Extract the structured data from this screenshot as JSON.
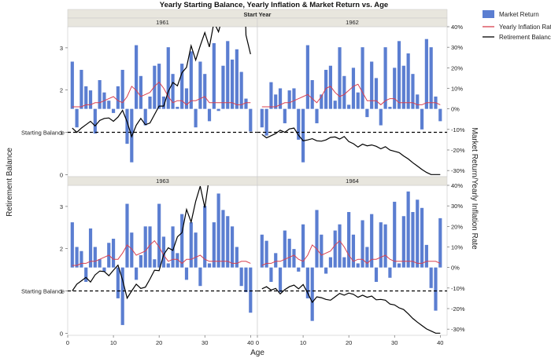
{
  "chart_data": {
    "type": "bar+line",
    "title": "Yearly Starting Balance, Yearly Inflation & Market Return vs. Age",
    "facet_header": "Start Year",
    "xlabel": "Age",
    "ylabel_left": "Retirement Balance",
    "ylabel_right": "Market Return/Yearly Inflation Rate",
    "starting_balance_label": "Starting Balance",
    "starting_balance_value": 1.0,
    "x_ticks": [
      0,
      10,
      20,
      30,
      40
    ],
    "y_left_ticks": [
      0,
      1,
      2,
      3
    ],
    "y_left_range": [
      -0.05,
      3.5
    ],
    "y_right_ticks": [
      "-30%",
      "-20%",
      "-10%",
      "0%",
      "10%",
      "20%",
      "30%",
      "40%"
    ],
    "y_right_range": [
      -0.33,
      0.4
    ],
    "legend": {
      "market_return": "Market Return",
      "inflation": "Yearly Inflation Rate",
      "balance": "Retirement Balance"
    },
    "colors": {
      "market_return": "#5b7ed1",
      "inflation": "#d9404f",
      "balance": "#000000",
      "header_bg": "#e8e6de",
      "panel_border": "#c8c8c8"
    },
    "panels": [
      {
        "start_year": "1961",
        "ages": [
          1,
          2,
          3,
          4,
          5,
          6,
          7,
          8,
          9,
          10,
          11,
          12,
          13,
          14,
          15,
          16,
          17,
          18,
          19,
          20,
          21,
          22,
          23,
          24,
          25,
          26,
          27,
          28,
          29,
          30,
          31,
          32,
          33,
          34,
          35,
          36,
          37,
          38,
          39,
          40
        ],
        "market_return": [
          0.23,
          -0.09,
          0.19,
          0.11,
          0.09,
          -0.12,
          0.14,
          0.08,
          0.04,
          -0.02,
          0.11,
          0.19,
          -0.17,
          -0.26,
          0.31,
          0.16,
          -0.08,
          0.06,
          0.21,
          0.22,
          0.06,
          0.3,
          0.17,
          0.01,
          0.22,
          0.1,
          0.28,
          -0.09,
          0.23,
          0.17,
          -0.06,
          0.32,
          -0.01,
          0.21,
          0.33,
          0.24,
          0.29,
          0.18,
          0.05,
          -0.11
        ],
        "inflation": [
          0.01,
          0.01,
          0.01,
          0.02,
          0.02,
          0.03,
          0.03,
          0.04,
          0.05,
          0.06,
          0.04,
          0.03,
          0.06,
          0.11,
          0.09,
          0.06,
          0.07,
          0.08,
          0.11,
          0.13,
          0.1,
          0.06,
          0.03,
          0.04,
          0.04,
          0.02,
          0.04,
          0.04,
          0.05,
          0.06,
          0.03,
          0.03,
          0.03,
          0.03,
          0.03,
          0.03,
          0.02,
          0.02,
          0.03,
          0.03
        ],
        "balance": [
          1.1,
          1.0,
          1.1,
          1.18,
          1.26,
          1.15,
          1.28,
          1.33,
          1.34,
          1.26,
          1.36,
          1.52,
          1.25,
          0.9,
          1.17,
          1.33,
          1.18,
          1.22,
          1.42,
          1.62,
          1.62,
          1.97,
          2.18,
          2.1,
          2.41,
          2.54,
          3.05,
          2.71,
          3.05,
          3.36,
          3.02,
          3.6,
          3.38,
          3.78,
          4.5,
          5.25,
          6.2,
          6.8,
          3.3,
          2.85
        ]
      },
      {
        "start_year": "1962",
        "ages": [
          1,
          2,
          3,
          4,
          5,
          6,
          7,
          8,
          9,
          10,
          11,
          12,
          13,
          14,
          15,
          16,
          17,
          18,
          19,
          20,
          21,
          22,
          23,
          24,
          25,
          26,
          27,
          28,
          29,
          30,
          31,
          32,
          33,
          34,
          35,
          36,
          37,
          38,
          39,
          40
        ],
        "market_return": [
          -0.09,
          -0.13,
          0.13,
          0.07,
          0.1,
          -0.07,
          0.09,
          0.1,
          -0.15,
          -0.26,
          0.31,
          0.14,
          -0.07,
          0.07,
          0.19,
          0.21,
          0.04,
          0.3,
          0.16,
          0.02,
          0.2,
          0.08,
          0.3,
          -0.04,
          0.23,
          0.15,
          -0.08,
          0.3,
          0.01,
          0.2,
          0.33,
          0.21,
          0.27,
          0.17,
          0.07,
          -0.1,
          0.34,
          0.3,
          0.06,
          -0.06
        ],
        "inflation": [
          0.01,
          0.01,
          0.01,
          0.01,
          0.02,
          0.03,
          0.03,
          0.04,
          0.05,
          0.06,
          0.07,
          0.05,
          0.03,
          0.06,
          0.1,
          0.11,
          0.08,
          0.06,
          0.07,
          0.09,
          0.11,
          0.12,
          0.08,
          0.04,
          0.04,
          0.04,
          0.02,
          0.04,
          0.05,
          0.05,
          0.03,
          0.03,
          0.03,
          0.03,
          0.02,
          0.02,
          0.03,
          0.03,
          0.03,
          0.02
        ],
        "balance": [
          0.95,
          0.87,
          0.92,
          0.97,
          1.05,
          1.0,
          1.08,
          1.1,
          0.93,
          0.8,
          0.82,
          0.85,
          0.8,
          0.79,
          0.82,
          0.88,
          0.89,
          0.84,
          0.9,
          0.78,
          0.73,
          0.65,
          0.72,
          0.68,
          0.7,
          0.67,
          0.61,
          0.66,
          0.58,
          0.55,
          0.52,
          0.44,
          0.37,
          0.28,
          0.2,
          0.12,
          0.05,
          0.0,
          0.0,
          0.0
        ]
      },
      {
        "start_year": "1963",
        "ages": [
          1,
          2,
          3,
          4,
          5,
          6,
          7,
          8,
          9,
          10,
          11,
          12,
          13,
          14,
          15,
          16,
          17,
          18,
          19,
          20,
          21,
          22,
          23,
          24,
          25,
          26,
          27,
          28,
          29,
          30,
          31,
          32,
          33,
          34,
          35,
          36,
          37,
          38,
          39,
          40
        ],
        "market_return": [
          0.22,
          0.1,
          0.08,
          -0.07,
          0.19,
          0.1,
          0.04,
          -0.02,
          0.12,
          0.14,
          -0.15,
          -0.28,
          0.31,
          0.17,
          -0.06,
          0.06,
          0.2,
          0.2,
          0.04,
          0.31,
          0.15,
          0.02,
          0.2,
          0.07,
          0.26,
          -0.06,
          0.22,
          0.17,
          -0.09,
          0.3,
          0.02,
          0.22,
          0.36,
          0.28,
          0.25,
          0.2,
          0.1,
          -0.09,
          -0.12,
          -0.22
        ],
        "inflation": [
          0.01,
          0.01,
          0.02,
          0.02,
          0.03,
          0.03,
          0.04,
          0.05,
          0.06,
          0.04,
          0.04,
          0.07,
          0.11,
          0.09,
          0.06,
          0.07,
          0.08,
          0.11,
          0.13,
          0.1,
          0.06,
          0.03,
          0.04,
          0.04,
          0.02,
          0.04,
          0.04,
          0.05,
          0.06,
          0.04,
          0.03,
          0.03,
          0.03,
          0.03,
          0.03,
          0.02,
          0.02,
          0.03,
          0.03,
          0.02
        ],
        "balance": [
          1.0,
          1.16,
          1.24,
          1.32,
          1.21,
          1.38,
          1.47,
          1.46,
          1.36,
          1.49,
          1.61,
          1.26,
          0.83,
          1.0,
          1.16,
          1.06,
          1.09,
          1.28,
          1.49,
          1.48,
          1.86,
          2.02,
          1.96,
          2.28,
          2.38,
          2.93,
          2.63,
          3.12,
          3.48,
          2.97,
          3.71,
          3.58,
          4.1,
          5.3,
          6.42,
          7.1,
          7.8,
          6.6,
          6.0,
          4.1
        ]
      },
      {
        "start_year": "1964",
        "ages": [
          1,
          2,
          3,
          4,
          5,
          6,
          7,
          8,
          9,
          10,
          11,
          12,
          13,
          14,
          15,
          16,
          17,
          18,
          19,
          20,
          21,
          22,
          23,
          24,
          25,
          26,
          27,
          28,
          29,
          30,
          31,
          32,
          33,
          34,
          35,
          36,
          37,
          38,
          39,
          40
        ],
        "market_return": [
          0.16,
          0.13,
          -0.07,
          0.07,
          -0.12,
          0.18,
          0.14,
          0.09,
          -0.02,
          0.21,
          -0.15,
          -0.26,
          0.28,
          0.16,
          -0.03,
          0.05,
          0.18,
          0.21,
          0.05,
          0.27,
          0.16,
          0.02,
          0.23,
          0.1,
          0.26,
          -0.07,
          0.22,
          0.21,
          -0.05,
          0.32,
          0.02,
          0.25,
          0.37,
          0.27,
          0.33,
          0.29,
          0.11,
          -0.1,
          -0.21,
          0.24
        ],
        "inflation": [
          0.01,
          0.02,
          0.02,
          0.03,
          0.03,
          0.04,
          0.05,
          0.06,
          0.04,
          0.03,
          0.06,
          0.11,
          0.09,
          0.06,
          0.07,
          0.08,
          0.11,
          0.13,
          0.1,
          0.06,
          0.03,
          0.04,
          0.04,
          0.02,
          0.04,
          0.04,
          0.05,
          0.06,
          0.04,
          0.03,
          0.03,
          0.03,
          0.03,
          0.03,
          0.02,
          0.02,
          0.03,
          0.03,
          0.03,
          0.02
        ],
        "balance": [
          1.05,
          1.1,
          1.02,
          1.06,
          0.93,
          1.03,
          1.1,
          1.14,
          1.05,
          1.15,
          0.95,
          0.73,
          0.86,
          0.84,
          0.8,
          0.78,
          0.86,
          0.94,
          0.9,
          0.95,
          0.92,
          0.85,
          0.9,
          0.85,
          0.88,
          0.79,
          0.8,
          0.78,
          0.69,
          0.67,
          0.6,
          0.56,
          0.46,
          0.35,
          0.26,
          0.18,
          0.1,
          0.05,
          0.0,
          0.0
        ]
      }
    ]
  }
}
